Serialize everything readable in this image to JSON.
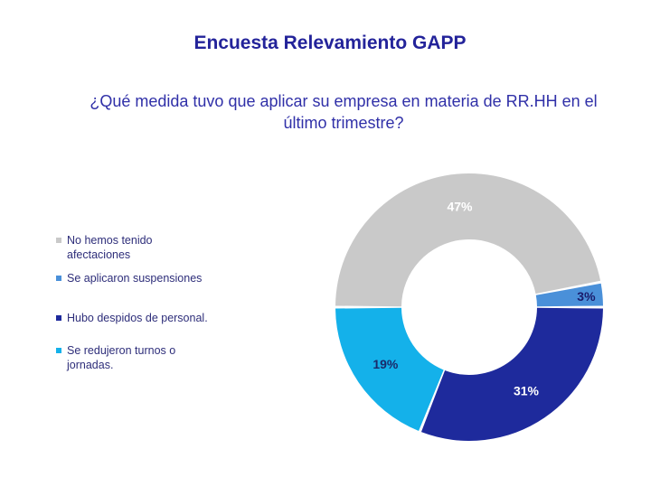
{
  "chart_data": {
    "type": "pie",
    "title": "Encuesta Relevamiento GAPP",
    "subtitle": "¿Qué medida tuvo que aplicar su empresa en materia de RR.HH en el último trimestre?",
    "donut": true,
    "legend_position": "left",
    "slices": [
      {
        "label": "No hemos tenido afectaciones",
        "value": 47,
        "value_label": "47%",
        "color": "#c9c9c9",
        "label_color": "#ffffff"
      },
      {
        "label": "Se aplicaron suspensiones",
        "value": 3,
        "value_label": "3%",
        "color": "#4a90d9",
        "label_color": "#1a1a6a"
      },
      {
        "label": "Hubo despidos de personal.",
        "value": 31,
        "value_label": "31%",
        "color": "#1e2a9c",
        "label_color": "#ffffff"
      },
      {
        "label": "Se redujeron turnos o jornadas.",
        "value": 19,
        "value_label": "19%",
        "color": "#14b1ea",
        "label_color": "#1a2a6a"
      }
    ]
  }
}
